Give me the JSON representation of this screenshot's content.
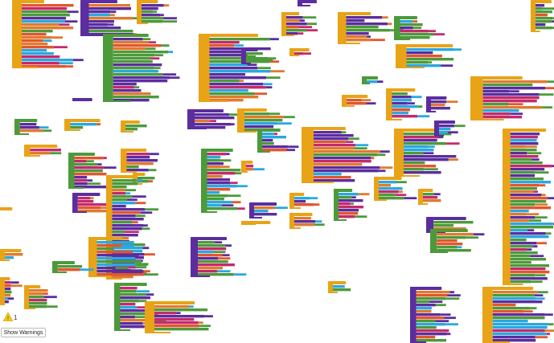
{
  "warnings": {
    "count": 1,
    "button": "Show Warnings"
  }
}
